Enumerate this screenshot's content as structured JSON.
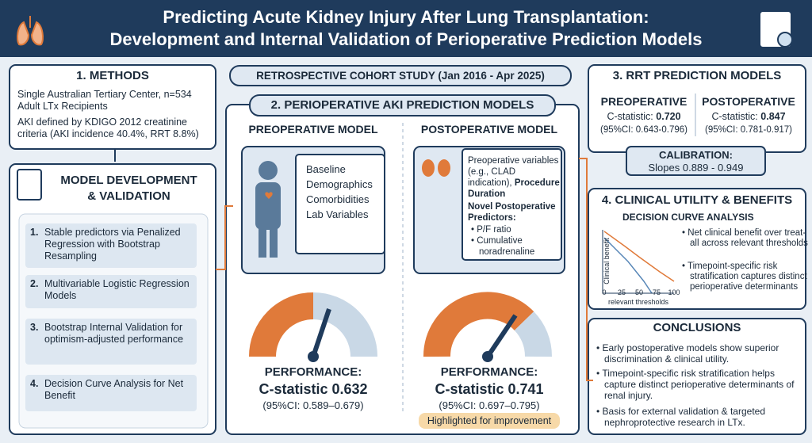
{
  "header": {
    "title_lines": [
      "Predicting Acute Kidney Injury After Lung Transplantation:",
      "Development and Internal Validation of Perioperative Prediction Models"
    ]
  },
  "banner": "RETROSPECTIVE COHORT STUDY (Jan 2016 - Apr 2025)",
  "methods": {
    "title": "1. METHODS",
    "paragraphs": [
      "Single Australian Tertiary Center, n=534 Adult LTx Recipients",
      "AKI defined by KDIGO 2012 creatinine criteria (AKI incidence 40.4%, RRT 8.8%)"
    ]
  },
  "development": {
    "title_lines": [
      "MODEL DEVELOPMENT",
      "& VALIDATION"
    ],
    "steps": [
      {
        "number": "1.",
        "text": "Stable predictors via Penalized Regression with Bootstrap Resampling"
      },
      {
        "number": "2.",
        "text": "Multivariable Logistic Regression Models"
      },
      {
        "number": "3.",
        "text": "Bootstrap Internal Validation for optimism-adjusted performance"
      },
      {
        "number": "4.",
        "text": "Decision Curve Analysis for Net Benefit"
      }
    ]
  },
  "aki_models": {
    "title": "2. PERIOPERATIVE AKI PREDICTION MODELS",
    "preoperative": {
      "heading": "PREOPERATIVE MODEL",
      "variables": [
        "Baseline",
        "Demographics",
        "Comorbidities",
        "Lab Variables"
      ],
      "performance_label": "PERFORMANCE:",
      "c_statistic": "C-statistic 0.632",
      "ci": "(95%CI: 0.589–0.679)"
    },
    "postoperative": {
      "heading": "POSTOPERATIVE MODEL",
      "variables_intro": "Preoperative variables (e.g., CLAD indication),",
      "variables_bold": "Procedure Duration",
      "novel_title": "Novel Postoperative Predictors:",
      "novel_items": [
        "P/F ratio",
        "Cumulative noradrenaline"
      ],
      "performance_label": "PERFORMANCE:",
      "c_statistic": "C-statistic 0.741",
      "ci": "(95%CI: 0.697–0.795)",
      "highlight": "Highlighted for improvement"
    }
  },
  "rrt": {
    "title": "3. RRT PREDICTION MODELS",
    "preoperative": {
      "heading": "PREOPERATIVE",
      "label": "C-statistic:",
      "value": "0.720",
      "ci": "(95%CI: 0.643-0.796)"
    },
    "postoperative": {
      "heading": "POSTOPERATIVE",
      "label": "C-statistic:",
      "value": "0.847",
      "ci": "(95%CI: 0.781-0.917)"
    }
  },
  "calibration": {
    "title": "CALIBRATION:",
    "text": "Slopes 0.889 - 0.949"
  },
  "clinical_utility": {
    "title": "4. CLINICAL UTILITY & BENEFITS",
    "subtitle": "DECISION CURVE ANALYSIS",
    "plot": {
      "y_label": "Clinical benefit",
      "x_label": "relevant thresholds",
      "xticks": [
        "0",
        "25",
        "50",
        "75",
        "100"
      ]
    },
    "bullets": [
      "Net clinical benefit over treat-all across relevant thresholds",
      "Timepoint-specific risk stratification captures distinct perioperative determinants"
    ]
  },
  "conclusions": {
    "title": "CONCLUSIONS",
    "bullets": [
      "Early postoperative models show superior discrimination & clinical utility.",
      "Timepoint-specific risk stratification helps capture distinct perioperative determinants of renal injury.",
      "Basis for external validation & targeted nephroprotective research in LTx."
    ]
  }
}
